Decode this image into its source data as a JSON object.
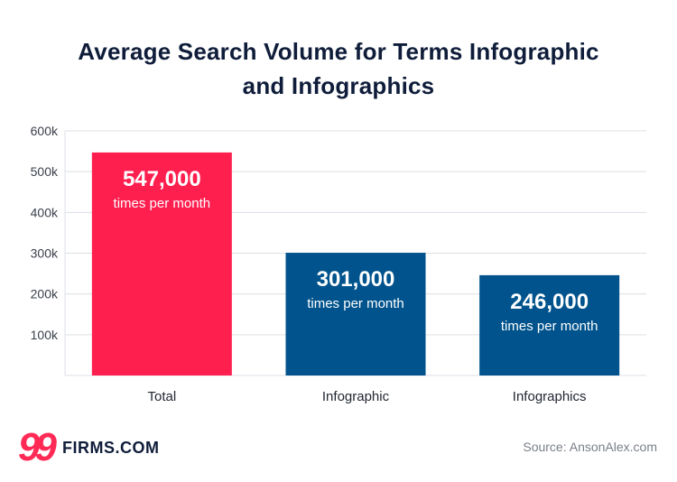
{
  "title_line1": "Average Search Volume for Terms Infographic",
  "title_line2": "and Infographics",
  "logo": {
    "nines": "99",
    "text": "FIRMS.COM"
  },
  "source": "Source: AnsonAlex.com",
  "colors": {
    "highlight": "#ff1f4f",
    "primary": "#00538c",
    "grid": "#dcdfe4",
    "text": "#0f1d3a"
  },
  "chart_data": {
    "type": "bar",
    "title": "Average Search Volume for Terms Infographic and Infographics",
    "xlabel": "",
    "ylabel": "",
    "categories": [
      "Total",
      "Infographic",
      "Infographics"
    ],
    "values": [
      547000,
      301000,
      246000
    ],
    "value_labels": [
      "547,000",
      "301,000",
      "246,000"
    ],
    "value_sublabel": "times per month",
    "bar_colors": [
      "#ff1f4f",
      "#00538c",
      "#00538c"
    ],
    "yticks": [
      100000,
      200000,
      300000,
      400000,
      500000,
      600000
    ],
    "ytick_labels": [
      "100k",
      "200k",
      "300k",
      "400k",
      "500k",
      "600k"
    ],
    "ylim": [
      0,
      600000
    ],
    "grid": true,
    "legend": "none"
  }
}
